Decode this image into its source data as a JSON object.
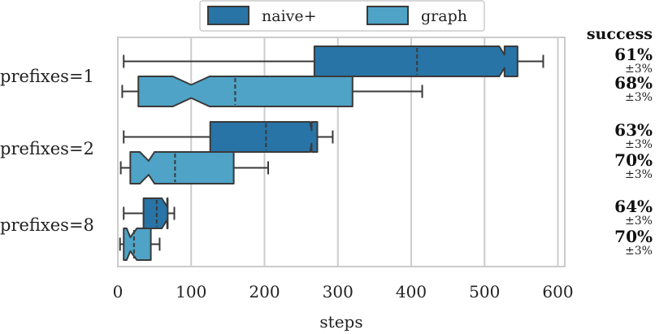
{
  "chart_data": {
    "type": "boxplot",
    "orientation": "horizontal",
    "xlabel": "steps",
    "ylabel": "",
    "title": "",
    "xlim": [
      0,
      610
    ],
    "xticks": [
      0,
      100,
      200,
      300,
      400,
      500,
      600
    ],
    "grid": "vertical",
    "legend": {
      "position": "top-center",
      "entries": [
        {
          "name": "naive+",
          "color": "#2874a6"
        },
        {
          "name": "graph",
          "color": "#4ea3c6"
        }
      ]
    },
    "categories": [
      "prefixes=1",
      "prefixes=2",
      "prefixes=8"
    ],
    "success_header": "success",
    "series": [
      {
        "name": "naive+",
        "color": "#2874a6",
        "boxes": [
          {
            "whisker_low": 8,
            "q1": 268,
            "median": 408,
            "q3": 545,
            "whisker_high": 580,
            "notch_low": 520,
            "notch_high": 525,
            "success": "61%",
            "error": "±3%"
          },
          {
            "whisker_low": 8,
            "q1": 126,
            "median": 202,
            "q3": 272,
            "whisker_high": 293,
            "notch_low": 262,
            "notch_high": 262,
            "success": "63%",
            "error": "±3%"
          },
          {
            "whisker_low": 8,
            "q1": 35,
            "median": 53,
            "q3": 68,
            "whisker_high": 77,
            "notch_low": 60,
            "notch_high": 65,
            "success": "64%",
            "error": "±3%"
          }
        ]
      },
      {
        "name": "graph",
        "color": "#4ea3c6",
        "boxes": [
          {
            "whisker_low": 6,
            "q1": 28,
            "median": 160,
            "q3": 320,
            "whisker_high": 415,
            "notch_low": 75,
            "notch_high": 125,
            "notch_mid": 100,
            "success": "68%",
            "error": "±3%"
          },
          {
            "whisker_low": 4,
            "q1": 17,
            "median": 78,
            "q3": 158,
            "whisker_high": 205,
            "notch_low": 30,
            "notch_high": 50,
            "notch_mid": 42,
            "success": "70%",
            "error": "±3%"
          },
          {
            "whisker_low": 3,
            "q1": 8,
            "median": 22,
            "q3": 45,
            "whisker_high": 57,
            "notch_low": 12,
            "notch_high": 26,
            "notch_mid": 17,
            "success": "70%",
            "error": "±3%"
          }
        ]
      }
    ]
  }
}
